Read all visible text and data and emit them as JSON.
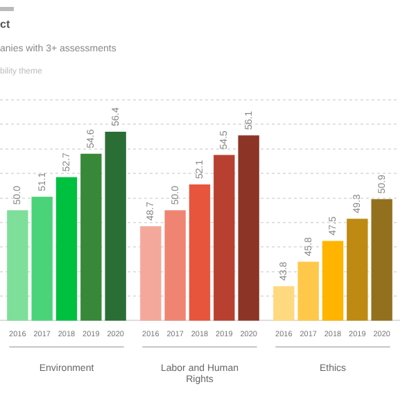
{
  "chart_data": {
    "type": "bar",
    "title": "ct",
    "subtitle": "anies with 3+ assessments",
    "annotations": [
      "bility theme"
    ],
    "categories": [
      "Environment",
      "Labor and Human Rights",
      "Ethics"
    ],
    "series": [
      {
        "name": "2016",
        "values": [
          50.0,
          48.7,
          43.8
        ],
        "value_labels": [
          "50.0",
          "48.7",
          "43.8"
        ],
        "colors": [
          "#7ddf9a",
          "#f4a89c",
          "#ffd980"
        ]
      },
      {
        "name": "2017",
        "values": [
          51.1,
          50.0,
          45.8
        ],
        "value_labels": [
          "51.1",
          "50.0",
          "45.8"
        ],
        "colors": [
          "#4bd37a",
          "#f08472",
          "#ffc84a"
        ]
      },
      {
        "name": "2018",
        "values": [
          52.7,
          52.1,
          47.5
        ],
        "value_labels": [
          "52.7",
          "52.1",
          "47.5"
        ],
        "colors": [
          "#00c040",
          "#e8553d",
          "#ffb400"
        ]
      },
      {
        "name": "2019",
        "values": [
          54.6,
          54.5,
          49.3
        ],
        "value_labels": [
          "54.6",
          "54.5",
          "49.3"
        ],
        "colors": [
          "#38883a",
          "#b84030",
          "#be8a12"
        ]
      },
      {
        "name": "2020",
        "values": [
          56.4,
          56.1,
          50.9
        ],
        "value_labels": [
          "56.4",
          "56.1",
          "50.9"
        ],
        "colors": [
          "#2a6e36",
          "#8c3526",
          "#93701e"
        ]
      }
    ],
    "ylim": [
      41,
      59
    ],
    "yticks": [
      {
        "value": 43,
        "label": null
      },
      {
        "value": 45,
        "label": null
      },
      {
        "value": 47,
        "label": null
      },
      {
        "value": 49,
        "label": null
      },
      {
        "value": 51,
        "label": null
      },
      {
        "value": 53,
        "label": null
      },
      {
        "value": 55,
        "label": null
      },
      {
        "value": 57,
        "label": null
      },
      {
        "value": 59,
        "label": null
      }
    ],
    "grid": "y",
    "legend": false,
    "tick_labels": "x"
  }
}
